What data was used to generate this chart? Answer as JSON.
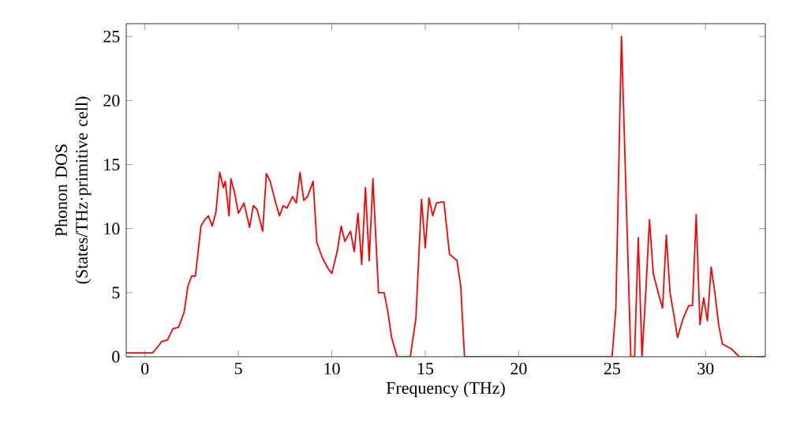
{
  "chart_data": {
    "type": "line",
    "xlabel": "Frequency (THz)",
    "ylabel": "Phonon DOS\n(States/THz·primitive cell)",
    "color": "#ff0000",
    "xlim": [
      -1,
      33.2
    ],
    "ylim": [
      0,
      26
    ],
    "xticks": [
      0,
      5,
      10,
      15,
      20,
      25,
      30
    ],
    "yticks": [
      0,
      5,
      10,
      15,
      20,
      25
    ],
    "x": [
      -1,
      0,
      0.4,
      0.7,
      0.9,
      1.2,
      1.5,
      1.8,
      2.1,
      2.3,
      2.5,
      2.7,
      3.0,
      3.2,
      3.4,
      3.6,
      3.8,
      4.0,
      4.2,
      4.3,
      4.5,
      4.6,
      4.8,
      5.0,
      5.3,
      5.6,
      5.8,
      6.0,
      6.3,
      6.5,
      6.7,
      7.0,
      7.2,
      7.4,
      7.6,
      7.9,
      8.1,
      8.3,
      8.5,
      8.7,
      9.0,
      9.2,
      9.5,
      9.8,
      10.0,
      10.3,
      10.5,
      10.7,
      11.0,
      11.2,
      11.4,
      11.6,
      11.8,
      12.0,
      12.2,
      12.5,
      12.8,
      13.0,
      13.2,
      13.5,
      14.2,
      14.5,
      14.8,
      15.0,
      15.2,
      15.4,
      15.6,
      16.0,
      16.3,
      16.7,
      16.9,
      17.1,
      25.0,
      25.2,
      25.5,
      25.8,
      26.0,
      26.2,
      26.4,
      26.6,
      26.8,
      27.0,
      27.2,
      27.5,
      27.7,
      27.9,
      28.1,
      28.3,
      28.5,
      28.8,
      29.1,
      29.3,
      29.5,
      29.7,
      29.9,
      30.1,
      30.3,
      30.5,
      30.7,
      30.9,
      31.4,
      31.8,
      33.2
    ],
    "values": [
      0.3,
      0.3,
      0.3,
      0.8,
      1.2,
      1.3,
      2.2,
      2.3,
      3.5,
      5.5,
      6.3,
      6.3,
      10.2,
      10.7,
      11.0,
      10.2,
      11.3,
      14.4,
      13.2,
      13.7,
      11.0,
      13.9,
      12.8,
      11.2,
      12.0,
      10.1,
      11.8,
      11.5,
      9.8,
      14.3,
      13.7,
      12.0,
      11.0,
      11.8,
      11.6,
      12.5,
      12.0,
      14.4,
      12.2,
      12.5,
      13.7,
      8.9,
      7.7,
      6.9,
      6.5,
      8.3,
      10.2,
      9.0,
      9.8,
      8.2,
      11.2,
      7.2,
      13.2,
      7.5,
      13.9,
      5.0,
      5.0,
      3.5,
      1.5,
      0,
      0,
      3.0,
      12.3,
      8.5,
      12.4,
      11.0,
      12.0,
      12.1,
      8.0,
      7.5,
      5.5,
      0,
      0,
      3.8,
      25.0,
      10,
      0,
      0,
      9.3,
      0,
      5,
      10.7,
      6.5,
      4.8,
      3.8,
      9.5,
      5.0,
      3.3,
      1.5,
      3.0,
      4.0,
      4.0,
      11.1,
      2.5,
      4.6,
      2.8,
      7.0,
      5.0,
      2.5,
      1.0,
      0.6,
      0,
      0
    ]
  }
}
